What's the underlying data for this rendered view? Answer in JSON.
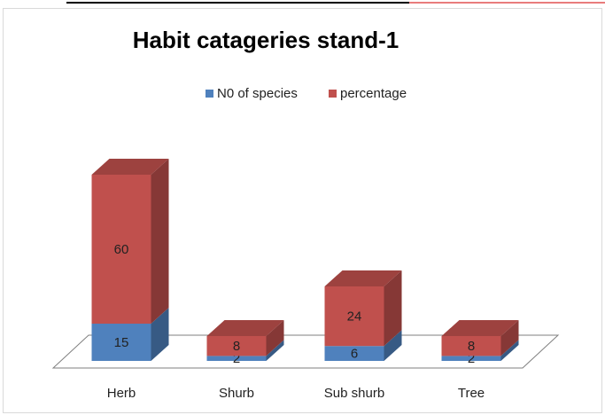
{
  "chart_data": {
    "type": "bar",
    "stacked": true,
    "three_d": true,
    "title": "Habit catageries stand-1",
    "categories": [
      "Herb",
      "Shurb",
      "Sub shurb",
      "Tree"
    ],
    "series": [
      {
        "name": "N0 of species",
        "color": "#4f81bd",
        "values": [
          15,
          2,
          6,
          2
        ]
      },
      {
        "name": "percentage",
        "color": "#c0504d",
        "values": [
          60,
          8,
          24,
          8
        ]
      }
    ],
    "legend": "top"
  }
}
